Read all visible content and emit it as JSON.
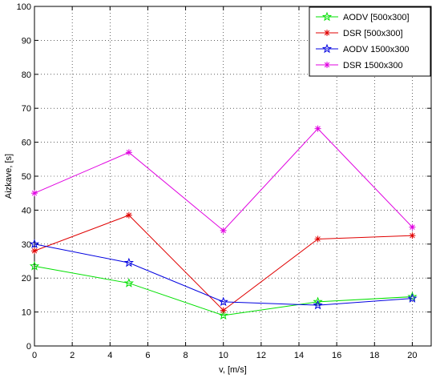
{
  "chart_data": {
    "type": "line",
    "title": "",
    "xlabel": "v, [m/s]",
    "ylabel": "Aizkave, [s]",
    "xlim": [
      0,
      21
    ],
    "ylim": [
      0,
      100
    ],
    "x": [
      0,
      5,
      10,
      15,
      20
    ],
    "x_ticks": [
      0,
      2,
      4,
      6,
      8,
      10,
      12,
      14,
      16,
      18,
      20
    ],
    "x_tick_labels": [
      "0",
      "2",
      "4",
      "6",
      "8",
      "10",
      "12",
      "14",
      "16",
      "18",
      "20"
    ],
    "y_ticks": [
      0,
      10,
      20,
      30,
      40,
      50,
      60,
      70,
      80,
      90,
      100
    ],
    "y_tick_labels": [
      "0",
      "10",
      "20",
      "30",
      "40",
      "50",
      "60",
      "70",
      "80",
      "90",
      "100"
    ],
    "grid": true,
    "legend_position": "top-right",
    "series": [
      {
        "name": "AODV [500x300]",
        "color": "#00e000",
        "marker": "star5",
        "values": [
          23.5,
          18.5,
          9,
          13,
          14.5
        ]
      },
      {
        "name": "DSR [500x300]",
        "color": "#e00000",
        "marker": "asterisk",
        "values": [
          28,
          38.5,
          10.5,
          31.5,
          32.5
        ]
      },
      {
        "name": "AODV 1500x300",
        "color": "#0000e0",
        "marker": "star5",
        "values": [
          30,
          24.5,
          13,
          12,
          14
        ]
      },
      {
        "name": "DSR 1500x300",
        "color": "#e000e0",
        "marker": "asterisk",
        "values": [
          45,
          57,
          34,
          64,
          35
        ]
      }
    ]
  }
}
